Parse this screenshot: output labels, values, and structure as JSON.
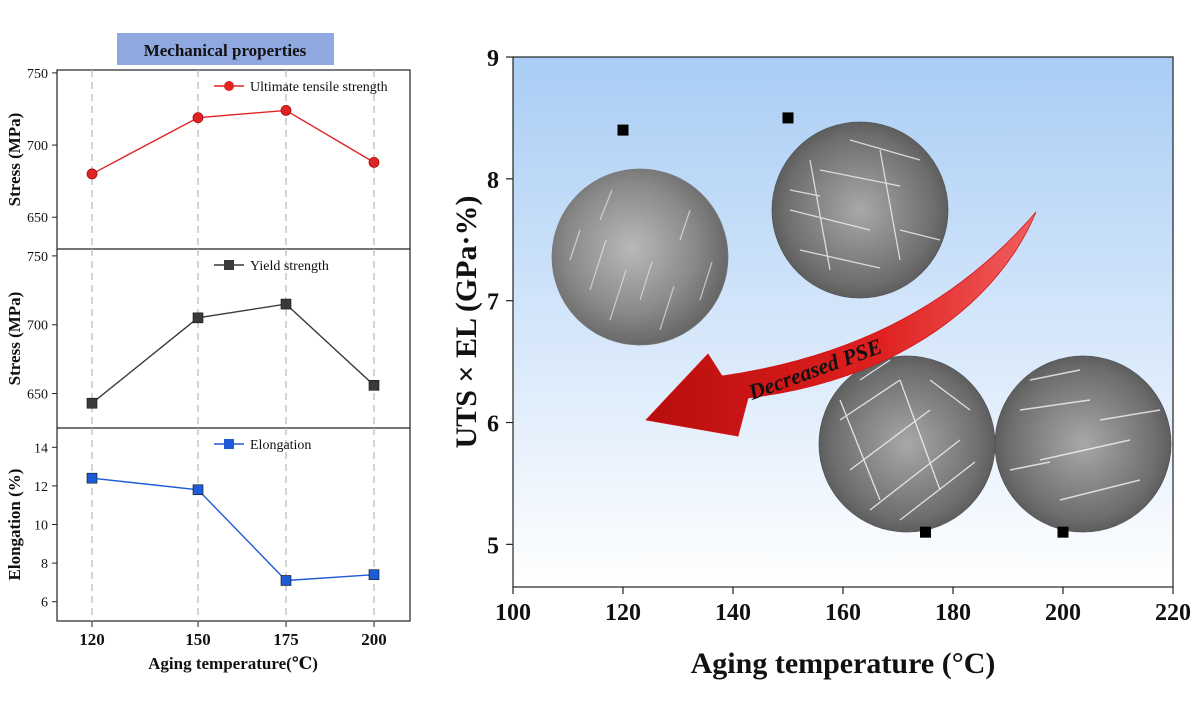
{
  "left_panel": {
    "header": "Mechanical properties",
    "header_color": "#8FA9E0",
    "xlabel": "Aging temperature(℃)",
    "x_tick_labels": [
      "120",
      "150",
      "175",
      "200"
    ]
  },
  "right_panel": {
    "xlabel": "Aging temperature (°C)",
    "ylabel": "UTS × EL (GPa·%)",
    "annotation": "Decreased PSE",
    "arrow_color": "#D41414",
    "background_gradient": [
      "#A9CDF5",
      "#FFFFFF"
    ]
  },
  "chart_data": [
    {
      "type": "line",
      "panel": "left-top",
      "ylabel": "Stress (MPa)",
      "legend": "Ultimate tensile strength",
      "color": "#E02424",
      "marker": "circle",
      "x": [
        120,
        150,
        175,
        200
      ],
      "y": [
        680,
        719,
        724,
        688
      ],
      "ylim": [
        628,
        752
      ],
      "yticks": [
        650,
        700,
        750
      ],
      "grid": "vertical dashed"
    },
    {
      "type": "line",
      "panel": "left-middle",
      "ylabel": "Stress (MPa)",
      "legend": "Yield strength",
      "color": "#3A3A3A",
      "marker": "square",
      "x": [
        120,
        150,
        175,
        200
      ],
      "y": [
        643,
        705,
        715,
        656
      ],
      "ylim": [
        625,
        755
      ],
      "yticks": [
        650,
        700,
        750
      ],
      "grid": "vertical dashed"
    },
    {
      "type": "line",
      "panel": "left-bottom",
      "ylabel": "Elongation (%)",
      "legend": "Elongation",
      "color": "#1E5BD6",
      "marker": "square",
      "x": [
        120,
        150,
        175,
        200
      ],
      "y": [
        12.4,
        11.8,
        7.1,
        7.4
      ],
      "ylim": [
        5,
        15
      ],
      "yticks": [
        6,
        8,
        10,
        12,
        14
      ],
      "grid": "vertical dashed"
    },
    {
      "type": "scatter",
      "panel": "right",
      "xlabel": "Aging temperature (°C)",
      "ylabel": "UTS × EL (GPa·%)",
      "x": [
        120,
        150,
        175,
        200
      ],
      "y": [
        8.4,
        8.5,
        5.1,
        5.1
      ],
      "xlim": [
        100,
        220
      ],
      "ylim": [
        4.65,
        9
      ],
      "xticks": [
        100,
        120,
        140,
        160,
        180,
        200,
        220
      ],
      "yticks": [
        5,
        6,
        7,
        8,
        9
      ],
      "marker": "square",
      "color": "#000000",
      "grid": "off"
    }
  ]
}
